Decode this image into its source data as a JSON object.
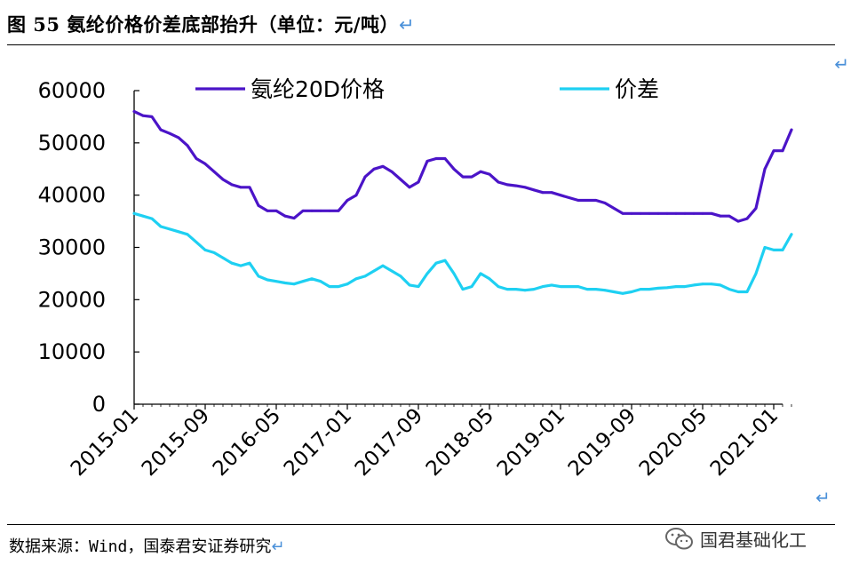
{
  "figure": {
    "title": "图 55 氨纶价格价差底部抬升（单位：元/吨）",
    "return_mark": "↵",
    "source": "数据来源：Wind，国泰君安证券研究",
    "watermark": "国君基础化工"
  },
  "colors": {
    "series_price": "#4B14C8",
    "series_spread": "#1ED0F2",
    "axis": "#000000",
    "return_mark": "#4a90d9"
  },
  "chart_data": {
    "type": "line",
    "title": "",
    "xlabel": "",
    "ylabel": "",
    "ylim": [
      0,
      60000
    ],
    "yticks": [
      0,
      10000,
      20000,
      30000,
      40000,
      50000,
      60000
    ],
    "xlim": [
      "2015-01",
      "2021-03"
    ],
    "xticks": [
      "2015-01",
      "2015-09",
      "2016-05",
      "2017-01",
      "2017-09",
      "2018-05",
      "2019-01",
      "2019-09",
      "2020-05",
      "2021-01"
    ],
    "legend_position": "top",
    "grid": false,
    "series": [
      {
        "name": "氨纶20D价格",
        "color": "#4B14C8",
        "points": [
          [
            "2015-01",
            56000
          ],
          [
            "2015-02",
            55200
          ],
          [
            "2015-03",
            55000
          ],
          [
            "2015-04",
            52500
          ],
          [
            "2015-05",
            51800
          ],
          [
            "2015-06",
            51000
          ],
          [
            "2015-07",
            49500
          ],
          [
            "2015-08",
            47000
          ],
          [
            "2015-09",
            46000
          ],
          [
            "2015-10",
            44500
          ],
          [
            "2015-11",
            43000
          ],
          [
            "2015-12",
            42000
          ],
          [
            "2016-01",
            41500
          ],
          [
            "2016-02",
            41500
          ],
          [
            "2016-03",
            38000
          ],
          [
            "2016-04",
            37000
          ],
          [
            "2016-05",
            37000
          ],
          [
            "2016-06",
            36000
          ],
          [
            "2016-07",
            35600
          ],
          [
            "2016-08",
            37000
          ],
          [
            "2016-09",
            37000
          ],
          [
            "2016-10",
            37000
          ],
          [
            "2016-11",
            37000
          ],
          [
            "2016-12",
            37000
          ],
          [
            "2017-01",
            39000
          ],
          [
            "2017-02",
            40000
          ],
          [
            "2017-03",
            43500
          ],
          [
            "2017-04",
            45000
          ],
          [
            "2017-05",
            45500
          ],
          [
            "2017-06",
            44500
          ],
          [
            "2017-07",
            43000
          ],
          [
            "2017-08",
            41500
          ],
          [
            "2017-09",
            42500
          ],
          [
            "2017-10",
            46500
          ],
          [
            "2017-11",
            47000
          ],
          [
            "2017-12",
            47000
          ],
          [
            "2018-01",
            45000
          ],
          [
            "2018-02",
            43500
          ],
          [
            "2018-03",
            43500
          ],
          [
            "2018-04",
            44500
          ],
          [
            "2018-05",
            44000
          ],
          [
            "2018-06",
            42500
          ],
          [
            "2018-07",
            42000
          ],
          [
            "2018-08",
            41800
          ],
          [
            "2018-09",
            41500
          ],
          [
            "2018-10",
            41000
          ],
          [
            "2018-11",
            40500
          ],
          [
            "2018-12",
            40500
          ],
          [
            "2019-01",
            40000
          ],
          [
            "2019-02",
            39500
          ],
          [
            "2019-03",
            39000
          ],
          [
            "2019-04",
            39000
          ],
          [
            "2019-05",
            39000
          ],
          [
            "2019-06",
            38500
          ],
          [
            "2019-07",
            37500
          ],
          [
            "2019-08",
            36500
          ],
          [
            "2019-09",
            36500
          ],
          [
            "2019-10",
            36500
          ],
          [
            "2019-11",
            36500
          ],
          [
            "2019-12",
            36500
          ],
          [
            "2020-01",
            36500
          ],
          [
            "2020-02",
            36500
          ],
          [
            "2020-03",
            36500
          ],
          [
            "2020-04",
            36500
          ],
          [
            "2020-05",
            36500
          ],
          [
            "2020-06",
            36500
          ],
          [
            "2020-07",
            36000
          ],
          [
            "2020-08",
            36000
          ],
          [
            "2020-09",
            35000
          ],
          [
            "2020-10",
            35500
          ],
          [
            "2020-11",
            37500
          ],
          [
            "2020-12",
            45000
          ],
          [
            "2021-01",
            48500
          ],
          [
            "2021-02",
            48500
          ],
          [
            "2021-03",
            52500
          ]
        ]
      },
      {
        "name": "价差",
        "color": "#1ED0F2",
        "points": [
          [
            "2015-01",
            36500
          ],
          [
            "2015-02",
            36000
          ],
          [
            "2015-03",
            35500
          ],
          [
            "2015-04",
            34000
          ],
          [
            "2015-05",
            33500
          ],
          [
            "2015-06",
            33000
          ],
          [
            "2015-07",
            32500
          ],
          [
            "2015-08",
            31000
          ],
          [
            "2015-09",
            29500
          ],
          [
            "2015-10",
            29000
          ],
          [
            "2015-11",
            28000
          ],
          [
            "2015-12",
            27000
          ],
          [
            "2016-01",
            26500
          ],
          [
            "2016-02",
            27000
          ],
          [
            "2016-03",
            24500
          ],
          [
            "2016-04",
            23800
          ],
          [
            "2016-05",
            23500
          ],
          [
            "2016-06",
            23200
          ],
          [
            "2016-07",
            23000
          ],
          [
            "2016-08",
            23500
          ],
          [
            "2016-09",
            24000
          ],
          [
            "2016-10",
            23500
          ],
          [
            "2016-11",
            22500
          ],
          [
            "2016-12",
            22500
          ],
          [
            "2017-01",
            23000
          ],
          [
            "2017-02",
            24000
          ],
          [
            "2017-03",
            24500
          ],
          [
            "2017-04",
            25500
          ],
          [
            "2017-05",
            26500
          ],
          [
            "2017-06",
            25500
          ],
          [
            "2017-07",
            24500
          ],
          [
            "2017-08",
            22800
          ],
          [
            "2017-09",
            22500
          ],
          [
            "2017-10",
            25000
          ],
          [
            "2017-11",
            27000
          ],
          [
            "2017-12",
            27500
          ],
          [
            "2018-01",
            25000
          ],
          [
            "2018-02",
            22000
          ],
          [
            "2018-03",
            22500
          ],
          [
            "2018-04",
            25000
          ],
          [
            "2018-05",
            24000
          ],
          [
            "2018-06",
            22500
          ],
          [
            "2018-07",
            22000
          ],
          [
            "2018-08",
            22000
          ],
          [
            "2018-09",
            21800
          ],
          [
            "2018-10",
            22000
          ],
          [
            "2018-11",
            22500
          ],
          [
            "2018-12",
            22800
          ],
          [
            "2019-01",
            22500
          ],
          [
            "2019-02",
            22500
          ],
          [
            "2019-03",
            22500
          ],
          [
            "2019-04",
            22000
          ],
          [
            "2019-05",
            22000
          ],
          [
            "2019-06",
            21800
          ],
          [
            "2019-07",
            21500
          ],
          [
            "2019-08",
            21200
          ],
          [
            "2019-09",
            21500
          ],
          [
            "2019-10",
            22000
          ],
          [
            "2019-11",
            22000
          ],
          [
            "2019-12",
            22200
          ],
          [
            "2020-01",
            22300
          ],
          [
            "2020-02",
            22500
          ],
          [
            "2020-03",
            22500
          ],
          [
            "2020-04",
            22800
          ],
          [
            "2020-05",
            23000
          ],
          [
            "2020-06",
            23000
          ],
          [
            "2020-07",
            22800
          ],
          [
            "2020-08",
            22000
          ],
          [
            "2020-09",
            21500
          ],
          [
            "2020-10",
            21500
          ],
          [
            "2020-11",
            25000
          ],
          [
            "2020-12",
            30000
          ],
          [
            "2021-01",
            29500
          ],
          [
            "2021-02",
            29500
          ],
          [
            "2021-03",
            32500
          ]
        ]
      }
    ]
  }
}
